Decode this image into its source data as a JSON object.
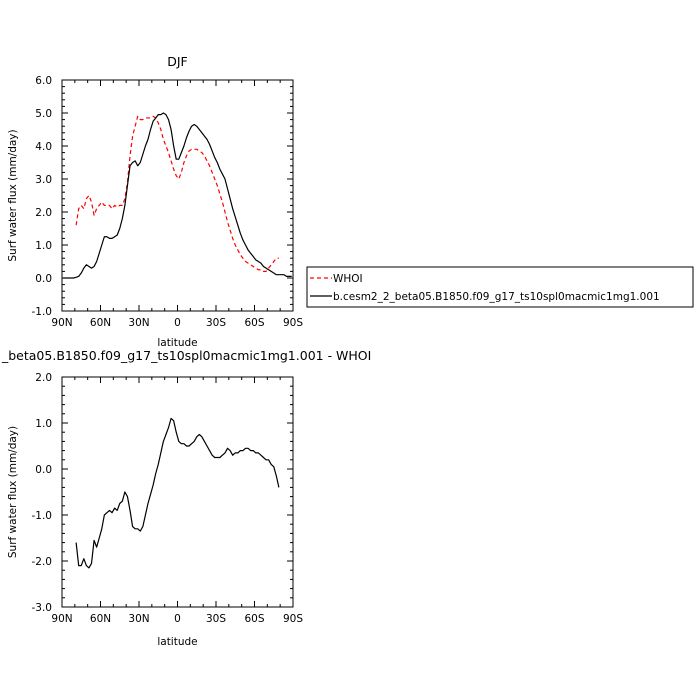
{
  "chart_data": [
    {
      "type": "line",
      "title": "DJF",
      "xlabel": "latitude",
      "ylabel": "Surf water flux (mm/day)",
      "xlim": [
        90,
        -90
      ],
      "ylim": [
        -1.0,
        6.0
      ],
      "x_ticks": [
        {
          "value": 90,
          "label": "90N"
        },
        {
          "value": 60,
          "label": "60N"
        },
        {
          "value": 30,
          "label": "30N"
        },
        {
          "value": 0,
          "label": "0"
        },
        {
          "value": -30,
          "label": "30S"
        },
        {
          "value": -60,
          "label": "60S"
        },
        {
          "value": -90,
          "label": "90S"
        }
      ],
      "y_ticks": [
        {
          "value": 6.0,
          "label": "6.0"
        },
        {
          "value": 5.0,
          "label": "5.0"
        },
        {
          "value": 4.0,
          "label": "4.0"
        },
        {
          "value": 3.0,
          "label": "3.0"
        },
        {
          "value": 2.0,
          "label": "2.0"
        },
        {
          "value": 1.0,
          "label": "1.0"
        },
        {
          "value": 0.0,
          "label": "0.0"
        },
        {
          "value": -1.0,
          "label": "-1.0"
        }
      ],
      "legend_position": "right, outside plot",
      "series": [
        {
          "name": "WHOI",
          "color": "#ff0000",
          "dashed": true,
          "x": [
            79,
            77,
            75,
            73,
            71,
            69,
            67,
            65,
            63,
            61,
            59,
            57,
            55,
            53,
            51,
            49,
            47,
            45,
            43,
            41,
            39,
            37,
            35,
            33,
            31,
            29,
            27,
            25,
            23,
            21,
            19,
            17,
            15,
            13,
            11,
            9,
            7,
            5,
            3,
            1,
            -1,
            -3,
            -5,
            -7,
            -9,
            -11,
            -13,
            -15,
            -17,
            -19,
            -21,
            -23,
            -25,
            -27,
            -29,
            -31,
            -33,
            -35,
            -37,
            -39,
            -41,
            -43,
            -45,
            -47,
            -49,
            -51,
            -53,
            -55,
            -57,
            -59,
            -61,
            -63,
            -65,
            -67,
            -69,
            -71,
            -73,
            -75,
            -77,
            -79
          ],
          "y": [
            1.6,
            2.1,
            2.2,
            2.1,
            2.4,
            2.5,
            2.3,
            1.9,
            2.1,
            2.2,
            2.3,
            2.2,
            2.2,
            2.2,
            2.1,
            2.2,
            2.15,
            2.2,
            2.2,
            2.4,
            2.9,
            3.7,
            4.3,
            4.6,
            4.9,
            4.8,
            4.8,
            4.85,
            4.85,
            4.85,
            4.9,
            4.85,
            4.7,
            4.5,
            4.2,
            4.0,
            3.8,
            3.55,
            3.3,
            3.1,
            3.0,
            3.2,
            3.5,
            3.7,
            3.85,
            3.9,
            3.9,
            3.9,
            3.85,
            3.8,
            3.7,
            3.55,
            3.4,
            3.2,
            3.0,
            2.8,
            2.55,
            2.3,
            2.0,
            1.7,
            1.45,
            1.2,
            1.0,
            0.85,
            0.7,
            0.6,
            0.5,
            0.45,
            0.4,
            0.35,
            0.3,
            0.25,
            0.25,
            0.2,
            0.2,
            0.3,
            0.4,
            0.5,
            0.6,
            0.6
          ]
        },
        {
          "name": "b.cesm2_2_beta05.B1850.f09_g17_ts10spl0macmic1mg1.001",
          "color": "#000000",
          "dashed": false,
          "x": [
            89,
            87,
            85,
            83,
            81,
            79,
            77,
            75,
            73,
            71,
            69,
            67,
            65,
            63,
            61,
            59,
            57,
            55,
            53,
            51,
            49,
            47,
            45,
            43,
            41,
            39,
            37,
            35,
            33,
            31,
            29,
            27,
            25,
            23,
            21,
            19,
            17,
            15,
            13,
            11,
            9,
            7,
            5,
            3,
            1,
            -1,
            -3,
            -5,
            -7,
            -9,
            -11,
            -13,
            -15,
            -17,
            -19,
            -21,
            -23,
            -25,
            -27,
            -29,
            -31,
            -33,
            -35,
            -37,
            -39,
            -41,
            -43,
            -45,
            -47,
            -49,
            -51,
            -53,
            -55,
            -57,
            -59,
            -61,
            -63,
            -65,
            -67,
            -69,
            -71,
            -73,
            -75,
            -77,
            -79,
            -81,
            -83,
            -85,
            -87,
            -89
          ],
          "y": [
            0.0,
            0.0,
            0.0,
            0.0,
            0.0,
            0.02,
            0.05,
            0.15,
            0.3,
            0.4,
            0.35,
            0.3,
            0.35,
            0.5,
            0.75,
            1.0,
            1.25,
            1.25,
            1.2,
            1.2,
            1.25,
            1.3,
            1.5,
            1.8,
            2.2,
            2.8,
            3.4,
            3.5,
            3.55,
            3.4,
            3.5,
            3.75,
            4.0,
            4.2,
            4.5,
            4.75,
            4.85,
            4.95,
            4.95,
            5.0,
            4.95,
            4.8,
            4.5,
            4.0,
            3.6,
            3.6,
            3.8,
            4.0,
            4.25,
            4.45,
            4.6,
            4.65,
            4.6,
            4.5,
            4.4,
            4.3,
            4.2,
            4.05,
            3.85,
            3.65,
            3.5,
            3.3,
            3.15,
            3.0,
            2.7,
            2.4,
            2.1,
            1.85,
            1.6,
            1.35,
            1.15,
            1.0,
            0.85,
            0.75,
            0.65,
            0.55,
            0.5,
            0.45,
            0.35,
            0.3,
            0.25,
            0.2,
            0.15,
            0.1,
            0.1,
            0.1,
            0.1,
            0.05,
            0.05,
            0.05
          ]
        }
      ]
    },
    {
      "type": "line",
      "title": "_beta05.B1850.f09_g17_ts10spl0macmic1mg1.001 - WHOI",
      "xlabel": "latitude",
      "ylabel": "Surf water flux (mm/day)",
      "xlim": [
        90,
        -90
      ],
      "ylim": [
        -3.0,
        2.0
      ],
      "x_ticks": [
        {
          "value": 90,
          "label": "90N"
        },
        {
          "value": 60,
          "label": "60N"
        },
        {
          "value": 30,
          "label": "30N"
        },
        {
          "value": 0,
          "label": "0"
        },
        {
          "value": -30,
          "label": "30S"
        },
        {
          "value": -60,
          "label": "60S"
        },
        {
          "value": -90,
          "label": "90S"
        }
      ],
      "y_ticks": [
        {
          "value": 2.0,
          "label": "2.0"
        },
        {
          "value": 1.0,
          "label": "1.0"
        },
        {
          "value": 0.0,
          "label": "0.0"
        },
        {
          "value": -1.0,
          "label": "-1.0"
        },
        {
          "value": -2.0,
          "label": "-2.0"
        },
        {
          "value": -3.0,
          "label": "-3.0"
        }
      ],
      "series": [
        {
          "color": "#000000",
          "dashed": false,
          "x": [
            79,
            77,
            75,
            73,
            71,
            69,
            67,
            65,
            63,
            61,
            59,
            57,
            55,
            53,
            51,
            49,
            47,
            45,
            43,
            41,
            39,
            37,
            35,
            33,
            31,
            29,
            27,
            25,
            23,
            21,
            19,
            17,
            15,
            13,
            11,
            9,
            7,
            5,
            3,
            1,
            -1,
            -3,
            -5,
            -7,
            -9,
            -11,
            -13,
            -15,
            -17,
            -19,
            -21,
            -23,
            -25,
            -27,
            -29,
            -31,
            -33,
            -35,
            -37,
            -39,
            -41,
            -43,
            -45,
            -47,
            -49,
            -51,
            -53,
            -55,
            -57,
            -59,
            -61,
            -63,
            -65,
            -67,
            -69,
            -71,
            -73,
            -75,
            -77,
            -79
          ],
          "y": [
            -1.6,
            -2.1,
            -2.1,
            -1.95,
            -2.1,
            -2.15,
            -2.05,
            -1.55,
            -1.7,
            -1.5,
            -1.3,
            -1.0,
            -0.95,
            -0.9,
            -0.95,
            -0.85,
            -0.9,
            -0.75,
            -0.7,
            -0.5,
            -0.6,
            -0.9,
            -1.25,
            -1.3,
            -1.3,
            -1.35,
            -1.25,
            -1.0,
            -0.75,
            -0.55,
            -0.35,
            -0.1,
            0.1,
            0.35,
            0.6,
            0.75,
            0.9,
            1.1,
            1.05,
            0.8,
            0.6,
            0.55,
            0.55,
            0.5,
            0.5,
            0.55,
            0.6,
            0.7,
            0.75,
            0.7,
            0.6,
            0.5,
            0.4,
            0.3,
            0.25,
            0.25,
            0.25,
            0.3,
            0.35,
            0.45,
            0.4,
            0.3,
            0.35,
            0.35,
            0.4,
            0.4,
            0.45,
            0.45,
            0.4,
            0.4,
            0.35,
            0.35,
            0.3,
            0.25,
            0.2,
            0.2,
            0.1,
            0.05,
            -0.15,
            -0.4
          ]
        }
      ]
    }
  ]
}
